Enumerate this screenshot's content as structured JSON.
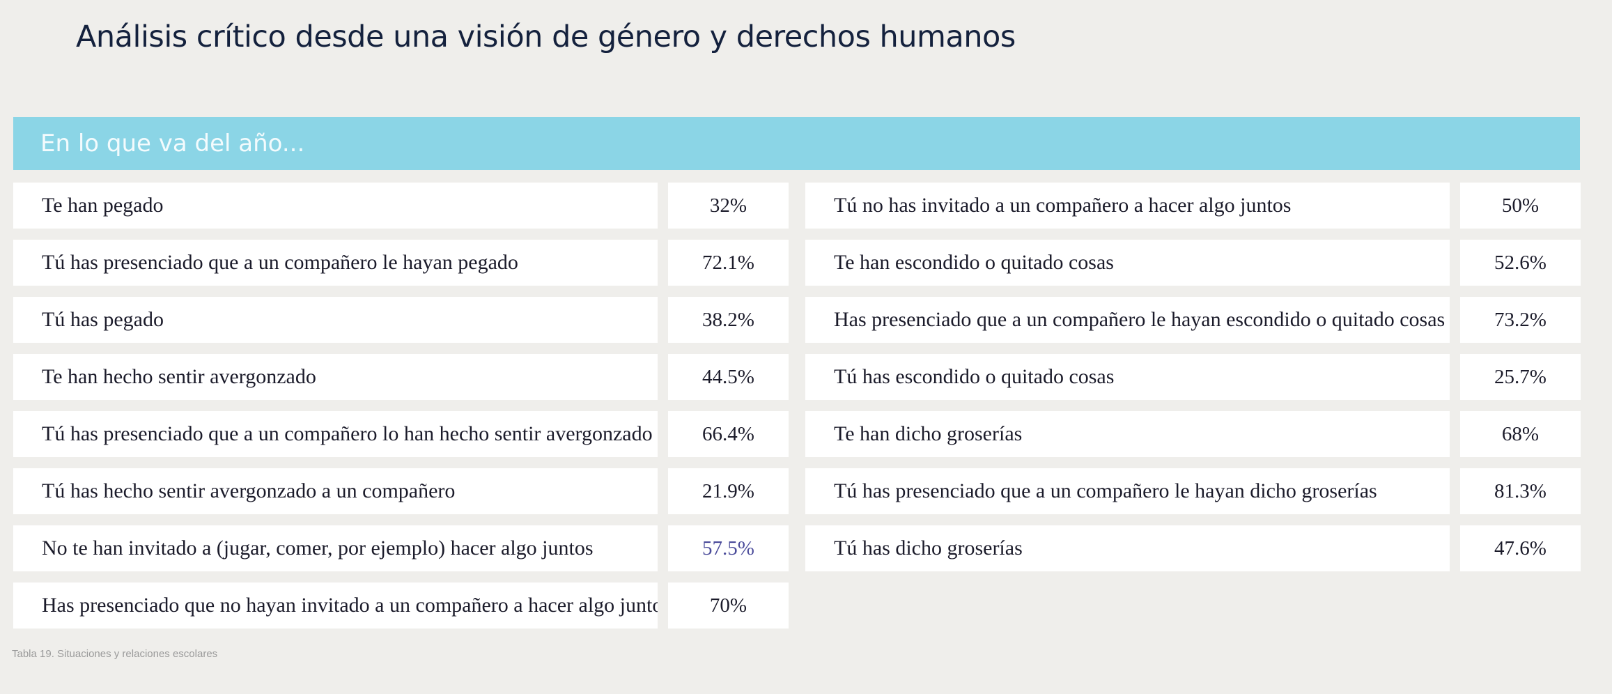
{
  "title": "Análisis crítico desde una visión de género y derechos humanos",
  "banner": "En lo que va del año...",
  "left_rows": [
    {
      "label": "Te han pegado",
      "value": "32%"
    },
    {
      "label": "Tú has presenciado que a un compañero le hayan pegado",
      "value": "72.1%"
    },
    {
      "label": "Tú has pegado",
      "value": "38.2%"
    },
    {
      "label": "Te han hecho sentir avergonzado",
      "value": "44.5%"
    },
    {
      "label": "Tú has presenciado que a un compañero lo han hecho sentir avergonzado",
      "value": "66.4%"
    },
    {
      "label": "Tú has hecho sentir avergonzado a un compañero",
      "value": "21.9%"
    },
    {
      "label": "No te han invitado a (jugar, comer, por ejemplo) hacer algo juntos",
      "value": "57.5%"
    },
    {
      "label": "Has presenciado que no hayan invitado a un compañero a hacer algo juntos",
      "value": "70%"
    }
  ],
  "right_rows": [
    {
      "label": "Tú no has invitado a un compañero a hacer algo juntos",
      "value": "50%"
    },
    {
      "label": "Te han escondido o quitado cosas",
      "value": "52.6%"
    },
    {
      "label": "Has presenciado que a un compañero le hayan escondido o quitado cosas",
      "value": "73.2%"
    },
    {
      "label": "Tú has escondido o quitado cosas",
      "value": "25.7%"
    },
    {
      "label": "Te han dicho groserías",
      "value": "68%"
    },
    {
      "label": "Tú has presenciado que a un compañero le hayan dicho groserías",
      "value": "81.3%"
    },
    {
      "label": "Tú has dicho groserías",
      "value": "47.6%"
    }
  ],
  "caption": "Tabla 19. Situaciones y relaciones escolares",
  "colors": {
    "banner": "#8bd5e6",
    "background": "#efeeeb",
    "title": "#14213d",
    "accent_value": "#4a4b9a"
  }
}
